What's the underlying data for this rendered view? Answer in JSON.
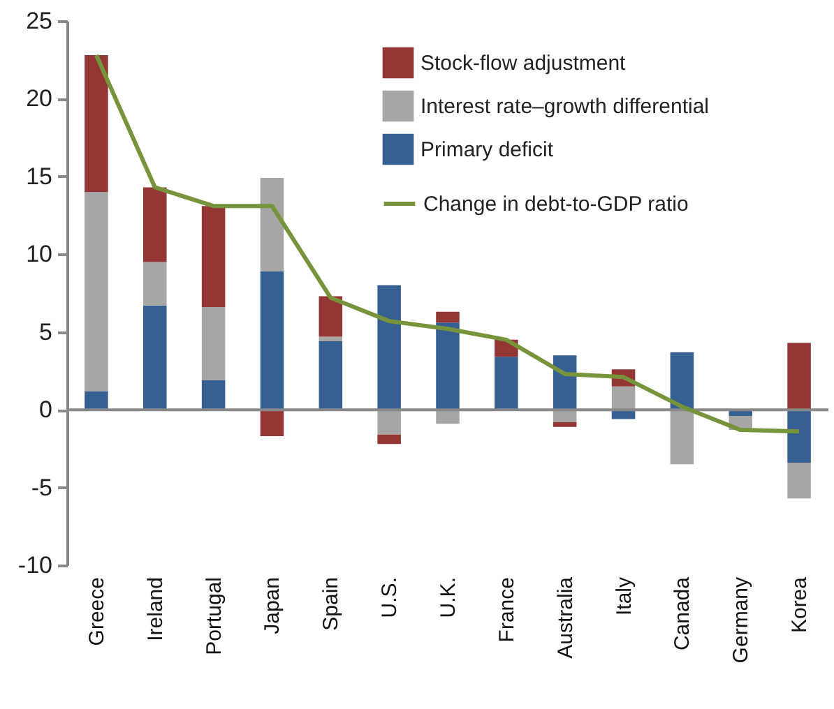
{
  "chart_data": {
    "type": "bar",
    "stacked": true,
    "legend": "top right",
    "categories": [
      "Greece",
      "Ireland",
      "Portugal",
      "Japan",
      "Spain",
      "U.S.",
      "U.K.",
      "France",
      "Australia",
      "Italy",
      "Canada",
      "Germany",
      "Korea"
    ],
    "ylim": [
      -10,
      25
    ],
    "yticks": [
      -10,
      -5,
      0,
      5,
      10,
      15,
      20,
      25
    ],
    "series": [
      {
        "name": "Primary deficit",
        "color": "#366092",
        "values": [
          1.2,
          6.7,
          1.9,
          8.9,
          4.4,
          8.0,
          5.6,
          3.4,
          3.5,
          -0.6,
          3.7,
          -0.4,
          -3.4
        ]
      },
      {
        "name": "Interest rate–growth differential",
        "color": "#a6a6a6",
        "values": [
          12.8,
          2.8,
          4.7,
          6.0,
          0.3,
          -1.6,
          -0.9,
          null,
          -0.8,
          1.5,
          -3.5,
          -0.9,
          -2.3
        ]
      },
      {
        "name": "Stock-flow adjustment",
        "color": "#943634",
        "values": [
          8.8,
          4.8,
          6.5,
          -1.7,
          2.6,
          -0.6,
          0.7,
          1.1,
          -0.3,
          1.1,
          null,
          null,
          4.3
        ]
      },
      {
        "name": "Change in debt-to-GDP ratio",
        "type": "line",
        "color": "#77933c",
        "values": [
          22.8,
          14.3,
          13.1,
          13.1,
          7.2,
          5.7,
          5.2,
          4.5,
          2.3,
          2.1,
          0.2,
          -1.3,
          -1.4
        ]
      }
    ]
  }
}
